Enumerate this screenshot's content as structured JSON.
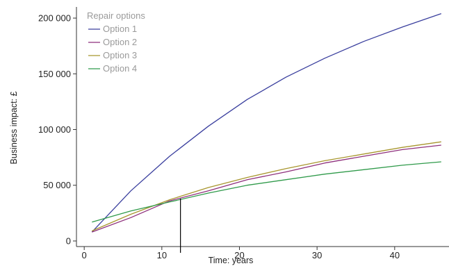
{
  "chart_data": {
    "type": "line",
    "title": "",
    "xlabel": "Time: years",
    "ylabel": "Business impact: £",
    "xlim": [
      -1,
      47
    ],
    "ylim": [
      -5000,
      210000
    ],
    "x_ticks": [
      0,
      10,
      20,
      30,
      40
    ],
    "y_ticks": [
      0,
      50000,
      100000,
      150000,
      200000
    ],
    "y_tick_labels": [
      "0",
      "50 000",
      "100 000",
      "150 000",
      "200 000"
    ],
    "grid": false,
    "legend": {
      "title": "Repair options",
      "position": "top-left"
    },
    "series": [
      {
        "name": "Option 1",
        "color": "#3a3f9e",
        "x": [
          1,
          6,
          11,
          16,
          21,
          26,
          31,
          36,
          41,
          46
        ],
        "y": [
          8000,
          45000,
          76000,
          103000,
          127000,
          147000,
          164000,
          179000,
          192000,
          204000
        ]
      },
      {
        "name": "Option 2",
        "color": "#8e2f7c",
        "x": [
          1,
          6,
          11,
          16,
          21,
          26,
          31,
          36,
          41,
          46
        ],
        "y": [
          8000,
          21000,
          36000,
          45000,
          55000,
          62000,
          70000,
          76000,
          82000,
          86000
        ]
      },
      {
        "name": "Option 3",
        "color": "#a8962e",
        "x": [
          1,
          6,
          11,
          16,
          21,
          26,
          31,
          36,
          41,
          46
        ],
        "y": [
          9000,
          24000,
          37000,
          48000,
          57000,
          65000,
          72000,
          78000,
          84000,
          89000
        ]
      },
      {
        "name": "Option 4",
        "color": "#2f9a4a",
        "x": [
          1,
          6,
          11,
          16,
          21,
          26,
          31,
          36,
          41,
          46
        ],
        "y": [
          17000,
          27000,
          35000,
          43000,
          50000,
          55000,
          60000,
          64000,
          68000,
          71000
        ]
      }
    ],
    "annotations": [
      {
        "type": "vertical-line",
        "x": 12.4,
        "y_top": 38000,
        "color": "#000000"
      }
    ]
  }
}
